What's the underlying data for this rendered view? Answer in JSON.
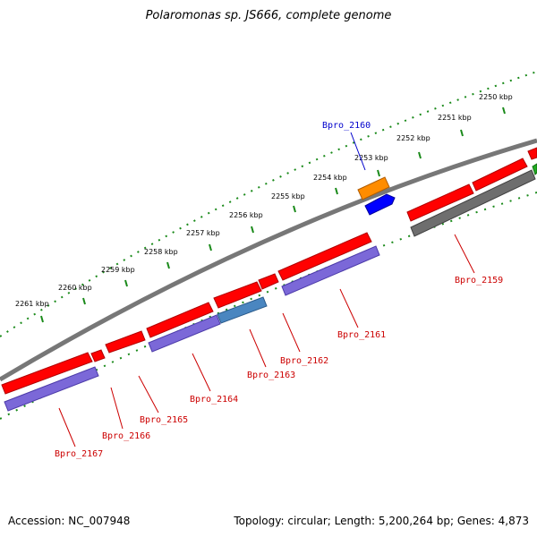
{
  "header": {
    "title": "Polaromonas sp. JS666, complete genome"
  },
  "footer": {
    "accession": "Accession: NC_007948",
    "topology": "Topology: circular; Length: 5,200,264 bp; Genes: 4,873"
  },
  "kbp_labels": [
    "2250 kbp",
    "2251 kbp",
    "2252 kbp",
    "2253 kbp",
    "2254 kbp",
    "2255 kbp",
    "2256 kbp",
    "2257 kbp",
    "2258 kbp",
    "2259 kbp",
    "2260 kbp",
    "2261 kbp"
  ],
  "gene_labels": [
    "Bpro_2160",
    "Bpro_2159",
    "Bpro_2161",
    "Bpro_2162",
    "Bpro_2163",
    "Bpro_2164",
    "Bpro_2165",
    "Bpro_2166",
    "Bpro_2167"
  ],
  "colors": {
    "label_red": "#cc0000",
    "label_blue": "#0000cc",
    "cds_red": "#ff0000",
    "cds_purple": "#7b68d8",
    "cds_gray": "#6e6e6e",
    "cds_steelblue": "#4a86c0",
    "cds_orange": "#ff8c00",
    "cds_blue": "#0000ff",
    "tick_green": "#1a8a1a",
    "backbone": "#777777"
  }
}
